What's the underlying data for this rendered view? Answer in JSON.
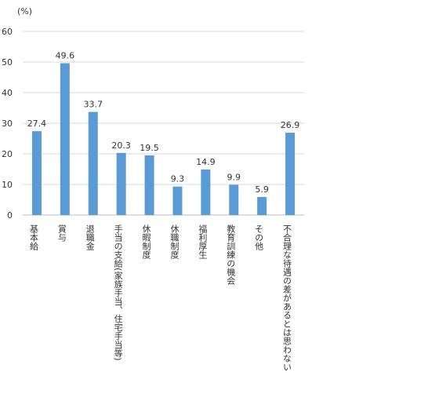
{
  "chart_data": {
    "type": "bar",
    "unit_label": "(%)",
    "categories": [
      "基本給",
      "賞与",
      "退職金",
      "手当の支給(家族手当、住宅手当等)",
      "休暇制度",
      "休職制度",
      "福利厚生",
      "教育訓練の機会",
      "その他",
      "不合理な待遇の差があるとは思わない"
    ],
    "values": [
      27.4,
      49.6,
      33.7,
      20.3,
      19.5,
      9.3,
      14.9,
      9.9,
      5.9,
      26.9
    ],
    "ylim": [
      0,
      60
    ],
    "yticks": [
      0,
      10,
      20,
      30,
      40,
      50,
      60
    ],
    "grid": true,
    "data_labels": true,
    "bar_color": "#5b9bd5",
    "grid_color": "#d9d9d9"
  }
}
